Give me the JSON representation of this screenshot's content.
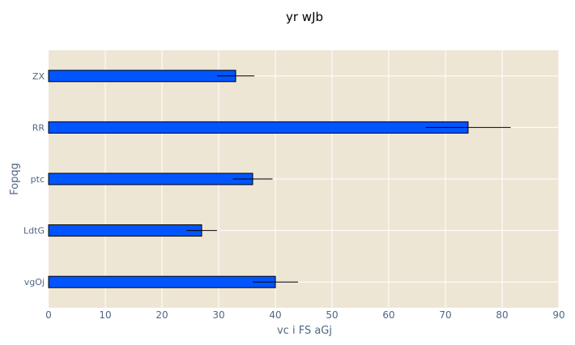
{
  "chart_data": {
    "type": "bar",
    "orientation": "horizontal",
    "title": "yr wJb",
    "xlabel": "vc  i FS aGj",
    "ylabel": "Fopqg",
    "xlim": [
      0,
      90
    ],
    "x_ticks": [
      0,
      10,
      20,
      30,
      40,
      50,
      60,
      70,
      80,
      90
    ],
    "categories": [
      "ZX",
      "RR",
      "ptc",
      "LdtG",
      "vgOj"
    ],
    "values": [
      33,
      74,
      36,
      27,
      40
    ],
    "errors": [
      3.3,
      7.5,
      3.5,
      2.7,
      4.0
    ],
    "grid": true,
    "colors": {
      "bar": "#0055ff",
      "plot_bg": "#ede6d4",
      "grid": "#ffffff",
      "error_bar": "#000000"
    }
  }
}
